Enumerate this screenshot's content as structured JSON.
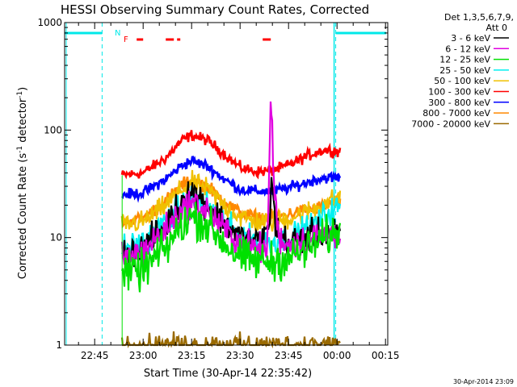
{
  "chart_data": {
    "type": "line",
    "title": "HESSI Observing Summary Count Rates, Corrected",
    "xlabel": "Start Time (30-Apr-14 22:35:42)",
    "ylabel_parts": {
      "main": "Corrected Count Rate (s",
      "sup": "-1",
      "tail": " detector",
      "sup2": "-1",
      "close": ")"
    },
    "y_scale": "log",
    "ylim": [
      1,
      1000
    ],
    "y_ticks": [
      {
        "value": 1,
        "label": "1"
      },
      {
        "value": 10,
        "label": "10"
      },
      {
        "value": 100,
        "label": "100"
      },
      {
        "value": 1000,
        "label": "1000"
      }
    ],
    "xlim_minutes_from_2230": [
      5.7,
      105.7
    ],
    "x_ticks": [
      {
        "min": 15,
        "label": "22:45"
      },
      {
        "min": 30,
        "label": "23:00"
      },
      {
        "min": 45,
        "label": "23:15"
      },
      {
        "min": 60,
        "label": "23:30"
      },
      {
        "min": 75,
        "label": "23:45"
      },
      {
        "min": 90,
        "label": "00:00"
      },
      {
        "min": 105,
        "label": "00:15"
      }
    ],
    "legend": {
      "placement": "right",
      "header_lines": [
        "Det 1,3,5,6,7,9,",
        "Att 0"
      ],
      "entries": [
        {
          "name": "3 - 6 keV",
          "color": "#000000"
        },
        {
          "name": "6 - 12 keV",
          "color": "#e000e0"
        },
        {
          "name": "12 - 25 keV",
          "color": "#00e000"
        },
        {
          "name": "25 - 50 keV",
          "color": "#00f0f0"
        },
        {
          "name": "50 - 100 keV",
          "color": "#f0c000"
        },
        {
          "name": "100 - 300 keV",
          "color": "#ff0000"
        },
        {
          "name": "300 - 800 keV",
          "color": "#0000ff"
        },
        {
          "name": "800 - 7000 keV",
          "color": "#ff8800"
        },
        {
          "name": "7000 - 20000 keV",
          "color": "#9a6a00"
        }
      ]
    },
    "series": [
      {
        "name": "100 - 300 keV",
        "color": "#ff0000",
        "x": [
          23.5,
          30,
          37,
          42,
          45,
          50,
          55,
          60,
          65,
          70,
          75,
          80,
          84,
          86,
          90,
          91
        ],
        "y": [
          38,
          40,
          55,
          80,
          90,
          80,
          60,
          45,
          41,
          42,
          47,
          56,
          63,
          65,
          64,
          63
        ]
      },
      {
        "name": "300 - 800 keV",
        "color": "#0000ff",
        "x": [
          23.5,
          30,
          37,
          42,
          45,
          50,
          55,
          60,
          65,
          70,
          75,
          80,
          84,
          86,
          90,
          91
        ],
        "y": [
          25,
          26,
          35,
          47,
          52,
          46,
          35,
          28,
          27,
          27,
          29,
          32,
          35,
          36,
          36,
          36
        ]
      },
      {
        "name": "800 - 7000 keV",
        "color": "#ff8800",
        "x": [
          23.5,
          30,
          37,
          42,
          45,
          50,
          55,
          60,
          65,
          70,
          75,
          80,
          84,
          86,
          90,
          91
        ],
        "y": [
          14,
          15,
          22,
          31,
          34,
          30,
          22,
          17,
          15.5,
          15.5,
          16.5,
          18,
          19,
          20,
          21,
          21
        ]
      },
      {
        "name": "50 - 100 keV",
        "color": "#f0c000",
        "x": [
          23.5,
          30,
          37,
          42,
          45,
          50,
          55,
          60,
          65,
          70,
          75,
          80,
          84,
          86,
          90,
          91
        ],
        "y": [
          13,
          14,
          20,
          28,
          32,
          28,
          20,
          15.5,
          14,
          14,
          15,
          17,
          19,
          21,
          23,
          24
        ]
      },
      {
        "name": "25 - 50 keV",
        "color": "#00f0f0",
        "x": [
          23.5,
          30,
          37,
          42,
          45,
          50,
          55,
          60,
          65,
          70,
          75,
          80,
          84,
          86,
          90,
          91
        ],
        "y": [
          8,
          9,
          14,
          20,
          23,
          20,
          14,
          10.5,
          9.5,
          9,
          10,
          12,
          14,
          16,
          19,
          20
        ]
      },
      {
        "name": "3 - 6 keV",
        "color": "#000000",
        "x": [
          23.5,
          30,
          37,
          42,
          44,
          46,
          50,
          55,
          60,
          65,
          69,
          70,
          71,
          75,
          80,
          85,
          90,
          91
        ],
        "y": [
          7,
          8,
          13,
          22,
          28,
          26,
          20,
          14,
          10,
          9,
          12,
          40,
          12,
          9,
          10,
          11,
          11,
          11
        ]
      },
      {
        "name": "6 - 12 keV",
        "color": "#e000e0",
        "x": [
          23.5,
          30,
          37,
          42,
          45,
          50,
          55,
          60,
          65,
          68.5,
          69.5,
          70.5,
          72,
          75,
          80,
          85,
          90,
          91
        ],
        "y": [
          6.5,
          7.5,
          12,
          18,
          21,
          18,
          12,
          9,
          8,
          8,
          230,
          30,
          10,
          8.5,
          9.5,
          10.5,
          11,
          11
        ]
      },
      {
        "name": "12 - 25 keV",
        "color": "#00e000",
        "x": [
          23.5,
          30,
          37,
          42,
          45,
          50,
          55,
          60,
          65,
          70,
          75,
          80,
          84,
          86,
          90,
          91
        ],
        "y": [
          4.5,
          5,
          8,
          13,
          16,
          13,
          9,
          6.5,
          6,
          6,
          6.5,
          7.5,
          9,
          10,
          11,
          12
        ]
      },
      {
        "name": "7000 - 20000 keV",
        "color": "#9a6a00",
        "x": [
          23.5,
          30,
          40,
          50,
          60,
          70,
          80,
          90,
          91
        ],
        "y": [
          1,
          1,
          1,
          1,
          1,
          1,
          1,
          1,
          1
        ]
      }
    ],
    "annotations": {
      "flags": [
        {
          "label": "N",
          "color": "#00e8e8"
        },
        {
          "label": "F",
          "color": "#ff0000"
        }
      ],
      "saa_intervals": [
        [
          5.7,
          17.3
        ],
        [
          89.6,
          105.2
        ]
      ],
      "night_boundaries": [
        17.3,
        89.6
      ],
      "flare_intervals": [
        [
          28,
          30
        ],
        [
          37,
          39.5
        ],
        [
          40.5,
          41.5
        ],
        [
          67,
          69.5
        ]
      ],
      "saa_color": "#00e8e8",
      "flare_color": "#ff0000"
    },
    "footer_date": "30-Apr-2014 23:09"
  }
}
